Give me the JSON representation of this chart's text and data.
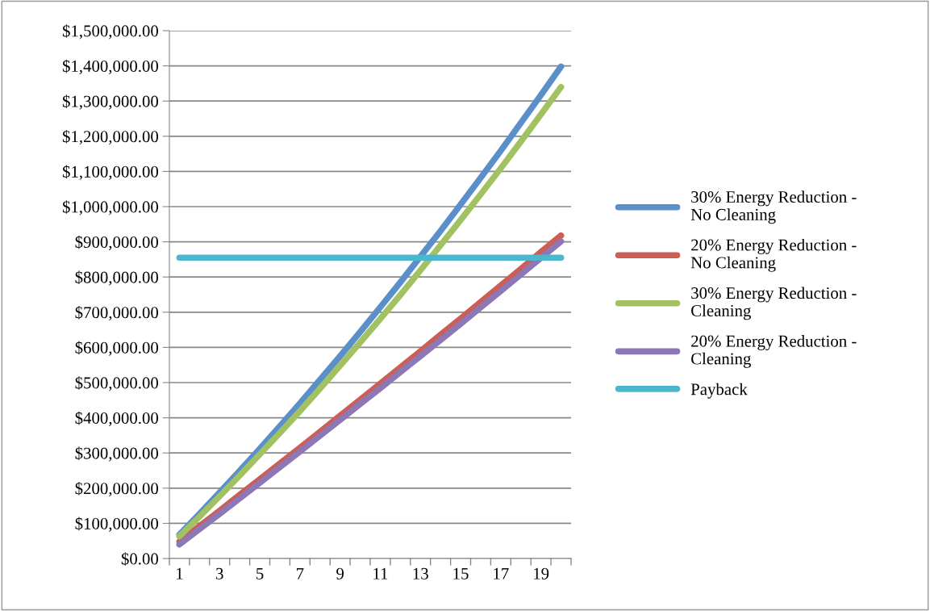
{
  "chart_data": {
    "type": "line",
    "categories": [
      "1",
      null,
      "3",
      null,
      "5",
      null,
      "7",
      null,
      "9",
      null,
      "11",
      null,
      "13",
      null,
      "15",
      null,
      "17",
      null,
      "19",
      null
    ],
    "series": [
      {
        "name": "30% Energy Reduction - No Cleaning",
        "color": "#5b8fc9",
        "values": [
          68000,
          127000,
          188000,
          249000,
          312000,
          376000,
          441000,
          508000,
          575000,
          644000,
          714000,
          785000,
          858000,
          931000,
          1006000,
          1082000,
          1159000,
          1238000,
          1317000,
          1398000
        ]
      },
      {
        "name": "20% Energy Reduction - No Cleaning",
        "color": "#cc5e55",
        "values": [
          48000,
          92000,
          136000,
          181000,
          225000,
          270000,
          315000,
          360000,
          406000,
          451000,
          497000,
          543000,
          589000,
          636000,
          682000,
          729000,
          776000,
          823000,
          871000,
          918000
        ]
      },
      {
        "name": "30% Energy Reduction - Cleaning",
        "color": "#a2c262",
        "values": [
          63000,
          119000,
          177000,
          236000,
          296000,
          357000,
          419000,
          483000,
          548000,
          614000,
          681000,
          749000,
          819000,
          890000,
          962000,
          1035000,
          1109000,
          1185000,
          1262000,
          1340000
        ]
      },
      {
        "name": "20% Energy Reduction - Cleaning",
        "color": "#8d78b5",
        "values": [
          40000,
          84000,
          127000,
          171000,
          215000,
          260000,
          304000,
          349000,
          394000,
          439000,
          484000,
          530000,
          575000,
          621000,
          667000,
          714000,
          760000,
          807000,
          854000,
          901000
        ]
      },
      {
        "name": "Payback",
        "color": "#4cb6cc",
        "values": [
          855000,
          855000,
          855000,
          855000,
          855000,
          855000,
          855000,
          855000,
          855000,
          855000,
          855000,
          855000,
          855000,
          855000,
          855000,
          855000,
          855000,
          855000,
          855000,
          855000
        ]
      }
    ],
    "ylim": [
      0,
      1500000
    ],
    "yticks": [
      {
        "value": 0,
        "label": "$0.00"
      },
      {
        "value": 100000,
        "label": "$100,000.00"
      },
      {
        "value": 200000,
        "label": "$200,000.00"
      },
      {
        "value": 300000,
        "label": "$300,000.00"
      },
      {
        "value": 400000,
        "label": "$400,000.00"
      },
      {
        "value": 500000,
        "label": "$500,000.00"
      },
      {
        "value": 600000,
        "label": "$600,000.00"
      },
      {
        "value": 700000,
        "label": "$700,000.00"
      },
      {
        "value": 800000,
        "label": "$800,000.00"
      },
      {
        "value": 900000,
        "label": "$900,000.00"
      },
      {
        "value": 1000000,
        "label": "$1,000,000.00"
      },
      {
        "value": 1100000,
        "label": "$1,100,000.00"
      },
      {
        "value": 1200000,
        "label": "$1,200,000.00"
      },
      {
        "value": 1300000,
        "label": "$1,300,000.00"
      },
      {
        "value": 1400000,
        "label": "$1,400,000.00"
      },
      {
        "value": 1500000,
        "label": "$1,500,000.00"
      }
    ],
    "grid": "y",
    "legend": "right",
    "marker": "none",
    "line_style": "solid"
  }
}
